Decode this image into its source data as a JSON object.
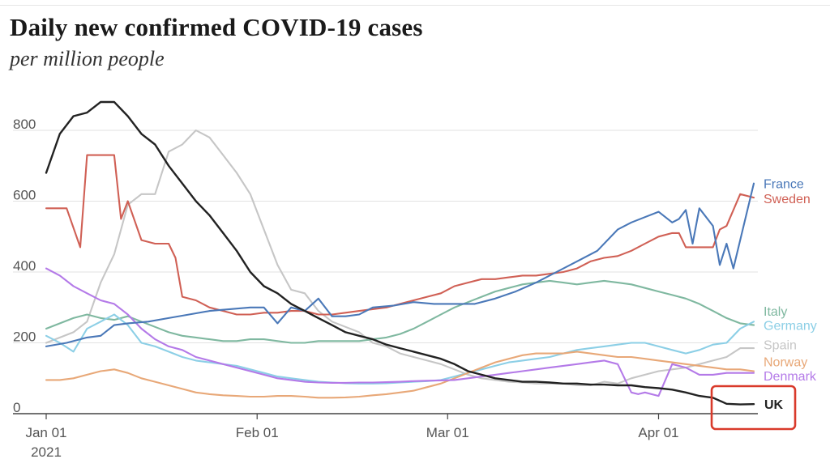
{
  "title": "Daily new confirmed COVID-19 cases",
  "subtitle": "per million people",
  "chart_data": {
    "type": "line",
    "title": "Daily new confirmed COVID-19 cases",
    "subtitle": "per million people",
    "xlabel": "",
    "ylabel": "",
    "ylim": [
      0,
      880
    ],
    "yticks": [
      0,
      200,
      400,
      600,
      800
    ],
    "x_domain_days": [
      0,
      104
    ],
    "xticks": [
      {
        "day": 0,
        "label": "Jan 01",
        "sublabel": "2021"
      },
      {
        "day": 31,
        "label": "Feb 01",
        "sublabel": ""
      },
      {
        "day": 59,
        "label": "Mar 01",
        "sublabel": ""
      },
      {
        "day": 90,
        "label": "Apr 01",
        "sublabel": ""
      }
    ],
    "grid": "horizontal",
    "legend": "direct labels at right end of lines",
    "highlight": "UK",
    "series": [
      {
        "name": "UK",
        "color": "#222222",
        "x": [
          0,
          2,
          4,
          6,
          8,
          10,
          12,
          14,
          16,
          18,
          20,
          22,
          24,
          26,
          28,
          30,
          32,
          34,
          36,
          38,
          40,
          42,
          44,
          46,
          48,
          50,
          52,
          54,
          56,
          58,
          60,
          62,
          64,
          66,
          68,
          70,
          72,
          74,
          76,
          78,
          80,
          82,
          84,
          86,
          88,
          90,
          92,
          94,
          96,
          98,
          100,
          102,
          104
        ],
        "y": [
          680,
          790,
          840,
          850,
          880,
          880,
          840,
          790,
          760,
          700,
          650,
          600,
          560,
          510,
          460,
          400,
          360,
          340,
          310,
          290,
          270,
          250,
          230,
          220,
          210,
          195,
          185,
          175,
          165,
          155,
          140,
          120,
          110,
          100,
          95,
          90,
          90,
          88,
          85,
          85,
          82,
          82,
          80,
          80,
          75,
          72,
          68,
          60,
          50,
          45,
          28,
          26,
          27
        ]
      },
      {
        "name": "France",
        "color": "#4a78b8",
        "x": [
          0,
          3,
          6,
          8,
          10,
          12,
          15,
          18,
          21,
          24,
          27,
          30,
          32,
          34,
          36,
          38,
          40,
          42,
          44,
          46,
          48,
          51,
          54,
          57,
          60,
          63,
          66,
          69,
          72,
          75,
          78,
          81,
          84,
          86,
          88,
          90,
          92,
          93,
          94,
          95,
          96,
          98,
          99,
          100,
          101,
          102,
          104
        ],
        "y": [
          190,
          200,
          215,
          220,
          250,
          255,
          260,
          270,
          280,
          290,
          295,
          300,
          300,
          255,
          300,
          290,
          325,
          275,
          275,
          280,
          300,
          305,
          315,
          310,
          310,
          310,
          325,
          345,
          370,
          400,
          430,
          460,
          520,
          540,
          555,
          570,
          540,
          550,
          575,
          480,
          580,
          530,
          420,
          480,
          410,
          490,
          650
        ]
      },
      {
        "name": "Sweden",
        "color": "#d06055",
        "x": [
          0,
          3,
          5,
          6,
          8,
          10,
          11,
          12,
          14,
          16,
          18,
          19,
          20,
          22,
          24,
          26,
          28,
          30,
          32,
          34,
          36,
          38,
          40,
          42,
          44,
          46,
          48,
          50,
          52,
          54,
          56,
          58,
          60,
          62,
          64,
          66,
          68,
          70,
          72,
          74,
          76,
          78,
          80,
          82,
          84,
          86,
          88,
          90,
          92,
          93,
          94,
          96,
          97,
          98,
          99,
          100,
          102,
          104
        ],
        "y": [
          580,
          580,
          470,
          730,
          730,
          730,
          550,
          600,
          490,
          480,
          480,
          440,
          330,
          320,
          300,
          290,
          280,
          280,
          285,
          285,
          290,
          290,
          280,
          280,
          285,
          290,
          295,
          300,
          310,
          320,
          330,
          340,
          360,
          370,
          380,
          380,
          385,
          390,
          390,
          395,
          400,
          410,
          430,
          440,
          445,
          460,
          480,
          500,
          510,
          510,
          470,
          470,
          470,
          470,
          520,
          530,
          620,
          610
        ]
      },
      {
        "name": "Italy",
        "color": "#7fb8a0",
        "x": [
          0,
          4,
          6,
          8,
          10,
          12,
          14,
          16,
          18,
          20,
          22,
          24,
          26,
          28,
          30,
          32,
          34,
          36,
          38,
          40,
          42,
          44,
          46,
          48,
          50,
          52,
          54,
          56,
          58,
          60,
          62,
          64,
          66,
          68,
          70,
          72,
          74,
          76,
          78,
          80,
          82,
          84,
          86,
          88,
          90,
          92,
          94,
          96,
          98,
          100,
          102,
          104
        ],
        "y": [
          240,
          270,
          280,
          270,
          265,
          275,
          260,
          245,
          230,
          220,
          215,
          210,
          205,
          205,
          210,
          210,
          205,
          200,
          200,
          205,
          205,
          205,
          205,
          210,
          215,
          225,
          240,
          260,
          280,
          300,
          315,
          330,
          345,
          355,
          365,
          370,
          375,
          370,
          365,
          370,
          375,
          370,
          365,
          355,
          345,
          335,
          325,
          310,
          290,
          270,
          255,
          250
        ]
      },
      {
        "name": "Germany",
        "color": "#8ccfe6",
        "x": [
          0,
          2,
          4,
          6,
          8,
          10,
          12,
          14,
          16,
          18,
          20,
          22,
          24,
          26,
          28,
          30,
          32,
          34,
          36,
          38,
          40,
          42,
          44,
          46,
          48,
          50,
          52,
          54,
          56,
          58,
          60,
          62,
          64,
          66,
          68,
          70,
          72,
          74,
          76,
          78,
          80,
          82,
          84,
          86,
          88,
          90,
          92,
          94,
          96,
          98,
          100,
          102,
          104
        ],
        "y": [
          220,
          200,
          175,
          240,
          260,
          280,
          250,
          200,
          190,
          175,
          160,
          150,
          145,
          140,
          135,
          125,
          115,
          105,
          100,
          95,
          90,
          88,
          86,
          85,
          85,
          86,
          88,
          90,
          92,
          95,
          105,
          115,
          125,
          135,
          145,
          150,
          155,
          160,
          170,
          180,
          185,
          190,
          195,
          200,
          200,
          190,
          180,
          170,
          180,
          195,
          200,
          240,
          260
        ]
      },
      {
        "name": "Spain",
        "color": "#c6c6c6",
        "x": [
          0,
          4,
          6,
          8,
          10,
          12,
          14,
          16,
          18,
          20,
          22,
          24,
          26,
          28,
          30,
          32,
          34,
          36,
          38,
          40,
          42,
          44,
          46,
          48,
          50,
          52,
          54,
          56,
          58,
          60,
          62,
          64,
          66,
          68,
          70,
          72,
          74,
          76,
          78,
          80,
          82,
          84,
          86,
          88,
          90,
          92,
          94,
          96,
          98,
          100,
          102,
          104
        ],
        "y": [
          200,
          230,
          260,
          370,
          450,
          590,
          620,
          620,
          740,
          760,
          800,
          780,
          730,
          680,
          620,
          520,
          420,
          350,
          340,
          290,
          260,
          245,
          230,
          200,
          190,
          170,
          160,
          150,
          140,
          125,
          110,
          100,
          95,
          90,
          88,
          85,
          85,
          85,
          80,
          80,
          90,
          85,
          100,
          110,
          120,
          125,
          130,
          140,
          150,
          160,
          185,
          185
        ]
      },
      {
        "name": "Norway",
        "color": "#e8a878",
        "x": [
          0,
          2,
          4,
          6,
          8,
          10,
          12,
          14,
          16,
          18,
          20,
          22,
          24,
          26,
          28,
          30,
          32,
          34,
          36,
          38,
          40,
          42,
          44,
          46,
          48,
          50,
          52,
          54,
          56,
          58,
          60,
          62,
          64,
          66,
          68,
          70,
          72,
          74,
          76,
          78,
          80,
          82,
          84,
          86,
          88,
          90,
          92,
          94,
          96,
          98,
          100,
          102,
          104
        ],
        "y": [
          95,
          95,
          100,
          110,
          120,
          125,
          115,
          100,
          90,
          80,
          70,
          60,
          55,
          52,
          50,
          48,
          48,
          50,
          50,
          48,
          45,
          45,
          46,
          48,
          52,
          55,
          60,
          65,
          75,
          85,
          100,
          115,
          130,
          145,
          155,
          165,
          170,
          170,
          170,
          175,
          170,
          165,
          160,
          160,
          155,
          150,
          145,
          140,
          135,
          130,
          125,
          125,
          120
        ]
      },
      {
        "name": "Denmark",
        "color": "#b47ae8",
        "x": [
          0,
          2,
          4,
          6,
          8,
          10,
          12,
          14,
          16,
          18,
          20,
          22,
          24,
          26,
          28,
          30,
          32,
          34,
          36,
          38,
          40,
          42,
          44,
          46,
          48,
          50,
          52,
          54,
          56,
          58,
          60,
          62,
          64,
          66,
          68,
          70,
          72,
          74,
          76,
          78,
          80,
          82,
          84,
          86,
          87,
          88,
          90,
          92,
          94,
          96,
          98,
          100,
          102,
          104
        ],
        "y": [
          410,
          390,
          360,
          340,
          320,
          310,
          280,
          240,
          210,
          190,
          180,
          160,
          150,
          140,
          130,
          120,
          110,
          100,
          95,
          90,
          88,
          87,
          87,
          88,
          88,
          89,
          90,
          92,
          93,
          94,
          95,
          100,
          105,
          110,
          115,
          120,
          125,
          130,
          135,
          140,
          145,
          150,
          140,
          60,
          55,
          60,
          50,
          140,
          130,
          110,
          110,
          115,
          115,
          115
        ]
      }
    ],
    "series_labels": [
      {
        "name": "France",
        "text": "France",
        "color": "#4a78b8",
        "y": 650
      },
      {
        "name": "Sweden",
        "text": "Sweden",
        "color": "#d06055",
        "y": 608
      },
      {
        "name": "Italy",
        "text": "Italy",
        "color": "#7fb8a0",
        "y": 290
      },
      {
        "name": "Germany",
        "text": "Germany",
        "color": "#8ccfe6",
        "y": 250
      },
      {
        "name": "Spain",
        "text": "Spain",
        "color": "#c6c6c6",
        "y": 195
      },
      {
        "name": "Norway",
        "text": "Norway",
        "color": "#e8a878",
        "y": 148
      },
      {
        "name": "Denmark",
        "text": "Denmark",
        "color": "#b47ae8",
        "y": 108
      },
      {
        "name": "UK",
        "text": "UK",
        "color": "#222222",
        "y": 28
      }
    ],
    "highlight_box_color": "#d93a2b"
  }
}
